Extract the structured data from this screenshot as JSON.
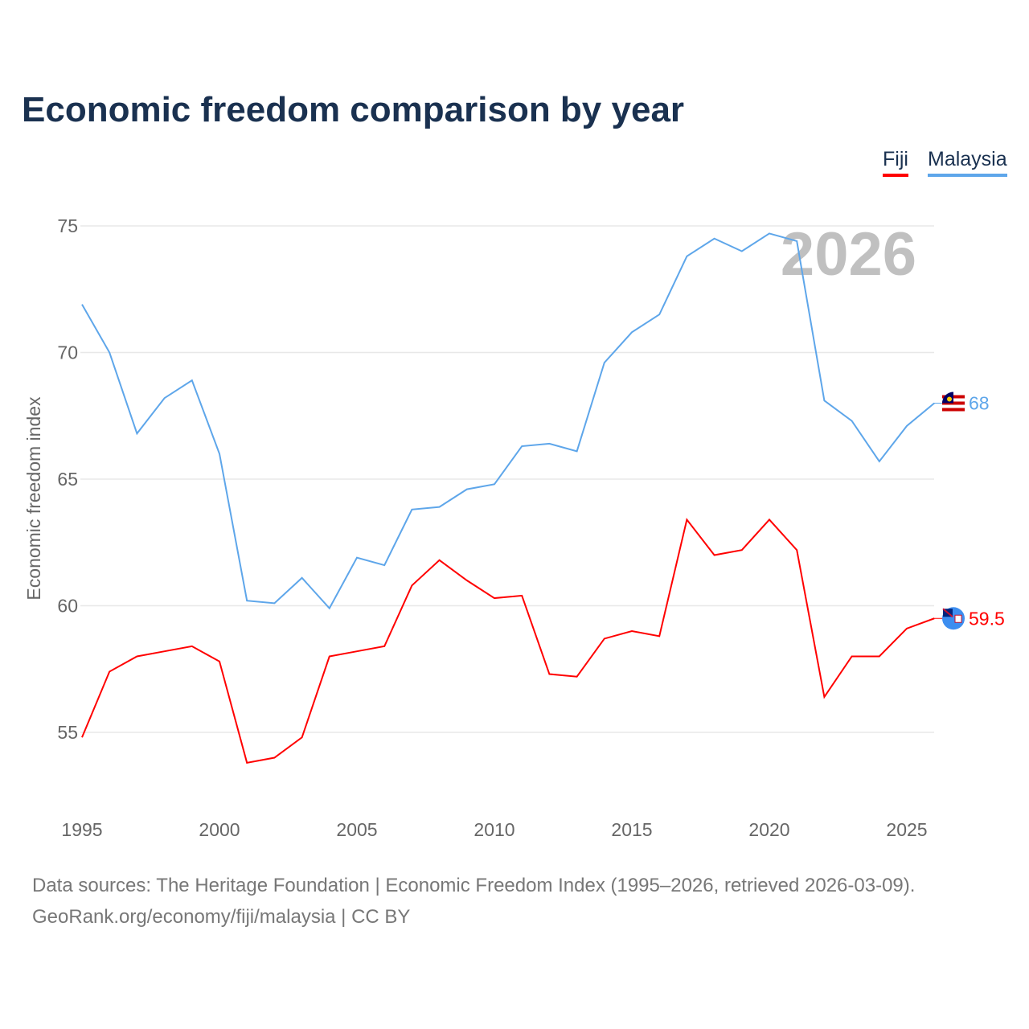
{
  "title": "Economic freedom comparison by year",
  "legend": {
    "fiji": "Fiji",
    "malaysia": "Malaysia"
  },
  "watermark_year": "2026",
  "footer": {
    "line1": "Data sources: The Heritage Foundation | Economic Freedom Index (1995–2026, retrieved 2026-03-09).",
    "line2": "GeoRank.org/economy/fiji/malaysia | CC BY"
  },
  "chart_data": {
    "type": "line",
    "title": "Economic freedom comparison by year",
    "xlabel": "",
    "ylabel": "Economic freedom index",
    "xlim": [
      1995,
      2026
    ],
    "ylim": [
      52.5,
      76
    ],
    "xticks": [
      1995,
      2000,
      2005,
      2010,
      2015,
      2020,
      2025
    ],
    "yticks": [
      55,
      60,
      65,
      70,
      75
    ],
    "grid": true,
    "legend_position": "top-right",
    "x": [
      1995,
      1996,
      1997,
      1998,
      1999,
      2000,
      2001,
      2002,
      2003,
      2004,
      2005,
      2006,
      2007,
      2008,
      2009,
      2010,
      2011,
      2012,
      2013,
      2014,
      2015,
      2016,
      2017,
      2018,
      2019,
      2020,
      2021,
      2022,
      2023,
      2024,
      2025,
      2026
    ],
    "series": [
      {
        "name": "Fiji",
        "color": "#ff0000",
        "end_label": "59.5",
        "flag": "fiji-flag",
        "values": [
          54.8,
          57.4,
          58.0,
          58.2,
          58.4,
          57.8,
          53.8,
          54.0,
          54.8,
          58.0,
          58.2,
          58.4,
          60.8,
          61.8,
          61.0,
          60.3,
          60.4,
          57.3,
          57.2,
          58.7,
          59.0,
          58.8,
          63.4,
          62.0,
          62.2,
          63.4,
          62.2,
          56.4,
          58.0,
          58.0,
          59.1,
          59.5
        ]
      },
      {
        "name": "Malaysia",
        "color": "#5ea6ea",
        "end_label": "68",
        "flag": "malaysia-flag",
        "values": [
          71.9,
          70.0,
          66.8,
          68.2,
          68.9,
          66.0,
          60.2,
          60.1,
          61.1,
          59.9,
          61.9,
          61.6,
          63.8,
          63.9,
          64.6,
          64.8,
          66.3,
          66.4,
          66.1,
          69.6,
          70.8,
          71.5,
          73.8,
          74.5,
          74.0,
          74.7,
          74.4,
          68.1,
          67.3,
          65.7,
          67.1,
          68.0
        ]
      }
    ]
  }
}
